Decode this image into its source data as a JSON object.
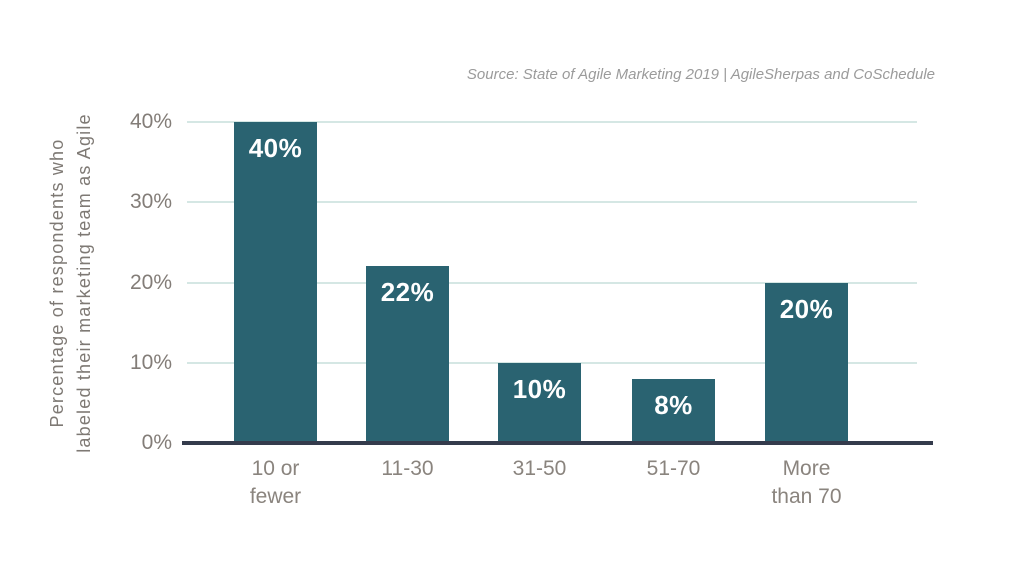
{
  "source": "Source: State of Agile Marketing 2019 | AgileSherpas and CoSchedule",
  "chart_data": {
    "type": "bar",
    "title": "",
    "categories": [
      "10 or\nfewer",
      "11-30",
      "31-50",
      "51-70",
      "More\nthan 70"
    ],
    "values": [
      40,
      22,
      10,
      8,
      20
    ],
    "value_labels": [
      "40%",
      "22%",
      "10%",
      "8%",
      "20%"
    ],
    "xlabel": "",
    "ylabel": "Percentage of respondents who labeled their marketing team as Agile",
    "ylabel_lines": [
      "Percentage of respondents who",
      "labeled their marketing team as Agile"
    ],
    "yticks": [
      {
        "value": 40,
        "label": "40%"
      },
      {
        "value": 30,
        "label": "30%"
      },
      {
        "value": 20,
        "label": "20%"
      },
      {
        "value": 10,
        "label": "10%"
      },
      {
        "value": 0,
        "label": "0%"
      }
    ],
    "ylim": [
      0,
      40
    ],
    "grid": true,
    "legend": false,
    "colors": {
      "bar": "#2a6371",
      "gridline": "#d5e7e4",
      "axis_line": "#343b4c",
      "tick_text": "#837d78",
      "category_text": "#8a847e",
      "value_label_text": "#ffffff",
      "ylabel_text": "#7e7974",
      "source_text": "#9b9b9b",
      "background": "#ffffff"
    }
  }
}
